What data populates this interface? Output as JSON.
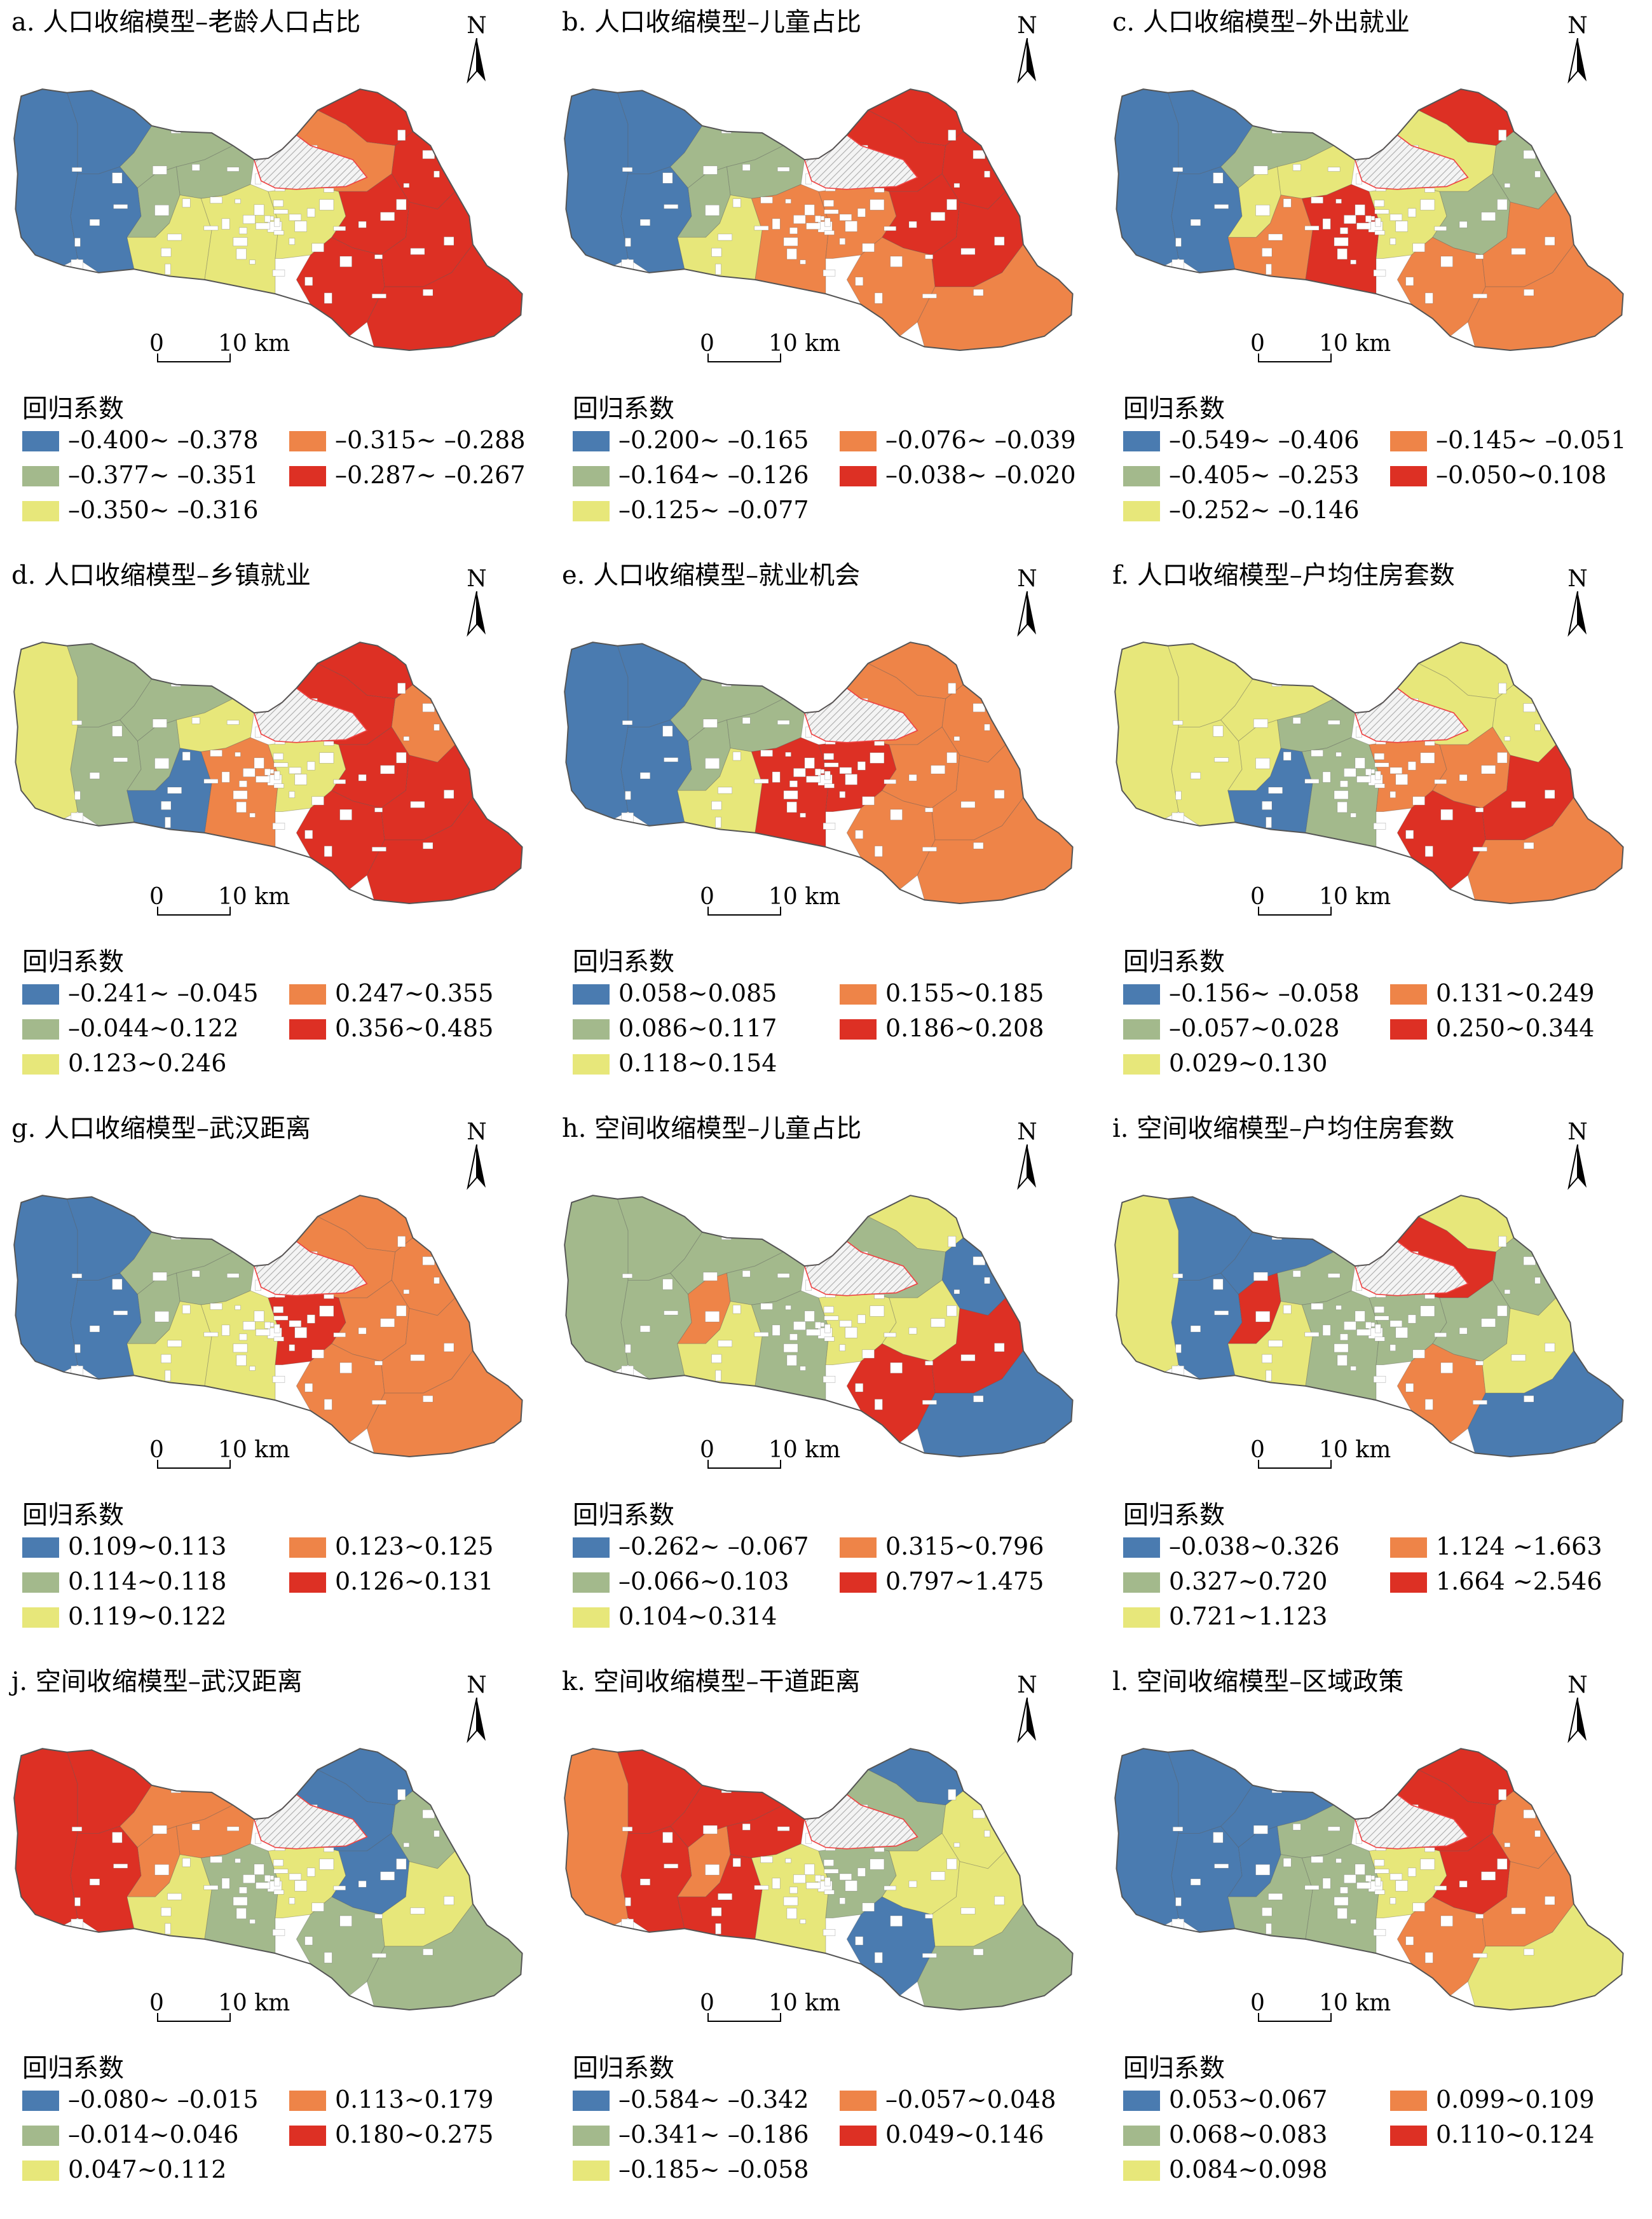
{
  "colors": {
    "blue": "#4a7bb0",
    "green": "#a3b98c",
    "yellow": "#e7e77a",
    "orange": "#ee8448",
    "red": "#dd3024",
    "urban_hatch": "#ee4444",
    "outline": "#555555"
  },
  "icons": {
    "north_arrow": "north-arrow-icon"
  },
  "common": {
    "north_label": "N",
    "scale_zero": "0",
    "scale_ten": "10 km",
    "legend_title": "回归系数"
  },
  "panels": [
    {
      "title": "a. 人口收缩模型–老龄人口占比",
      "fill": [
        "blue",
        "blue",
        "blue",
        "green",
        "green",
        "green",
        "yellow",
        "yellow",
        "yellow",
        "red",
        "orange",
        "red",
        "red",
        "red",
        "red",
        "red"
      ],
      "legend": [
        "–0.400~ –0.378",
        "–0.377~ –0.351",
        "–0.350~ –0.316",
        "–0.315~ –0.288",
        "–0.287~ –0.267"
      ]
    },
    {
      "title": "b. 人口收缩模型–儿童占比",
      "fill": [
        "blue",
        "blue",
        "blue",
        "green",
        "green",
        "green",
        "yellow",
        "orange",
        "orange",
        "red",
        "red",
        "red",
        "red",
        "orange",
        "red",
        "orange"
      ],
      "legend": [
        "–0.200~ –0.165",
        "–0.164~ –0.126",
        "–0.125~ –0.077",
        "–0.076~ –0.039",
        "–0.038~ –0.020"
      ]
    },
    {
      "title": "c. 人口收缩模型–外出就业",
      "fill": [
        "blue",
        "blue",
        "blue",
        "green",
        "yellow",
        "yellow",
        "orange",
        "red",
        "yellow",
        "red",
        "yellow",
        "green",
        "green",
        "orange",
        "orange",
        "orange"
      ],
      "legend": [
        "–0.549~ –0.406",
        "–0.405~ –0.253",
        "–0.252~ –0.146",
        "–0.145~ –0.051",
        "–0.050~0.108"
      ]
    },
    {
      "title": "d. 人口收缩模型–乡镇就业",
      "fill": [
        "yellow",
        "green",
        "green",
        "green",
        "green",
        "yellow",
        "blue",
        "orange",
        "yellow",
        "red",
        "red",
        "orange",
        "red",
        "red",
        "red",
        "red"
      ],
      "legend": [
        "–0.241~ –0.045",
        "–0.044~0.122",
        "0.123~0.246",
        "0.247~0.355",
        "0.356~0.485"
      ]
    },
    {
      "title": "e. 人口收缩模型–就业机会",
      "fill": [
        "blue",
        "blue",
        "blue",
        "green",
        "green",
        "green",
        "yellow",
        "red",
        "red",
        "orange",
        "orange",
        "orange",
        "orange",
        "orange",
        "orange",
        "orange"
      ],
      "legend": [
        "0.058~0.085",
        "0.086~0.117",
        "0.118~0.154",
        "0.155~0.185",
        "0.186~0.208"
      ]
    },
    {
      "title": "f. 人口收缩模型–户均住房套数",
      "fill": [
        "yellow",
        "yellow",
        "yellow",
        "yellow",
        "yellow",
        "green",
        "blue",
        "green",
        "orange",
        "yellow",
        "yellow",
        "yellow",
        "orange",
        "red",
        "red",
        "orange"
      ],
      "legend": [
        "–0.156~ –0.058",
        "–0.057~0.028",
        "0.029~0.130",
        "0.131~0.249",
        "0.250~0.344"
      ]
    },
    {
      "title": "g. 人口收缩模型–武汉距离",
      "fill": [
        "blue",
        "blue",
        "blue",
        "green",
        "green",
        "green",
        "yellow",
        "yellow",
        "red",
        "orange",
        "orange",
        "orange",
        "orange",
        "orange",
        "orange",
        "orange"
      ],
      "legend": [
        "0.109~0.113",
        "0.114~0.118",
        "0.119~0.122",
        "0.123~0.125",
        "0.126~0.131"
      ]
    },
    {
      "title": "h. 空间收缩模型–儿童占比",
      "fill": [
        "green",
        "green",
        "green",
        "green",
        "orange",
        "green",
        "yellow",
        "green",
        "yellow",
        "yellow",
        "green",
        "blue",
        "yellow",
        "red",
        "red",
        "blue"
      ],
      "legend": [
        "–0.262~ –0.067",
        "–0.066~0.103",
        "0.104~0.314",
        "0.315~0.796",
        "0.797~1.475"
      ]
    },
    {
      "title": "i. 空间收缩模型–户均住房套数",
      "fill": [
        "yellow",
        "blue",
        "blue",
        "blue",
        "red",
        "green",
        "yellow",
        "green",
        "green",
        "yellow",
        "red",
        "green",
        "green",
        "orange",
        "yellow",
        "blue"
      ],
      "legend": [
        "–0.038~0.326",
        "0.327~0.720",
        "0.721~1.123",
        "1.124 ~1.663",
        "1.664 ~2.546"
      ]
    },
    {
      "title": "j. 空间收缩模型–武汉距离",
      "fill": [
        "red",
        "red",
        "red",
        "orange",
        "orange",
        "orange",
        "yellow",
        "green",
        "yellow",
        "blue",
        "blue",
        "green",
        "blue",
        "green",
        "yellow",
        "green"
      ],
      "legend": [
        "–0.080~ –0.015",
        "–0.014~0.046",
        "0.047~0.112",
        "0.113~0.179",
        "0.180~0.275"
      ]
    },
    {
      "title": "k. 空间收缩模型–干道距离",
      "fill": [
        "orange",
        "red",
        "red",
        "red",
        "orange",
        "red",
        "red",
        "yellow",
        "green",
        "blue",
        "green",
        "yellow",
        "yellow",
        "blue",
        "yellow",
        "green"
      ],
      "legend": [
        "–0.584~ –0.342",
        "–0.341~ –0.186",
        "–0.185~ –0.058",
        "–0.057~0.048",
        "0.049~0.146"
      ]
    },
    {
      "title": "l. 空间收缩模型–区域政策",
      "fill": [
        "blue",
        "blue",
        "blue",
        "blue",
        "blue",
        "green",
        "green",
        "green",
        "yellow",
        "red",
        "red",
        "orange",
        "red",
        "orange",
        "orange",
        "yellow"
      ],
      "legend": [
        "0.053~0.067",
        "0.068~0.083",
        "0.084~0.098",
        "0.099~0.109",
        "0.110~0.124"
      ]
    }
  ]
}
